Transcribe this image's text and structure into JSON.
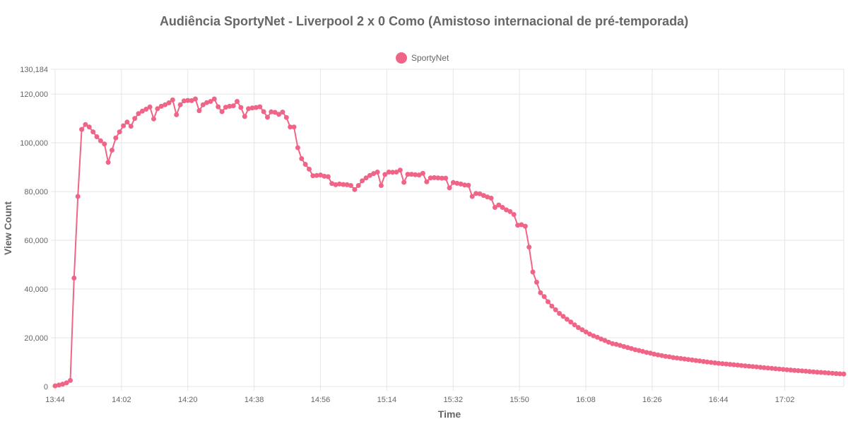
{
  "chart_data": {
    "type": "line",
    "title": "Audiência SportyNet - Liverpool 2 x 0 Como (Amistoso internacional de pré-temporada)",
    "xlabel": "Time",
    "ylabel": "View Count",
    "legend": {
      "placement": "top-center",
      "entries": [
        "SportyNet"
      ]
    },
    "grid": true,
    "color": "#f06587",
    "x_ticks": [
      "13:44",
      "14:02",
      "14:20",
      "14:38",
      "14:56",
      "15:14",
      "15:32",
      "15:50",
      "16:08",
      "16:26",
      "16:44",
      "17:02"
    ],
    "y_ticks": [
      "0",
      "20,000",
      "40,000",
      "60,000",
      "80,000",
      "100,000",
      "120,000",
      "130,184"
    ],
    "ylim": [
      0,
      130184
    ],
    "x_start": "13:44",
    "x_end": "17:18",
    "series": [
      {
        "name": "SportyNet",
        "values": [
          300,
          600,
          1000,
          1500,
          2500,
          44500,
          78000,
          105500,
          107500,
          106500,
          104500,
          102500,
          100800,
          99500,
          92000,
          97000,
          102000,
          104500,
          107000,
          108500,
          106800,
          110000,
          112000,
          113000,
          113800,
          114700,
          109800,
          114000,
          115000,
          115600,
          116400,
          117600,
          111500,
          115600,
          117200,
          117400,
          117300,
          118000,
          113200,
          115600,
          116500,
          117000,
          118000,
          114800,
          112800,
          114600,
          115000,
          115200,
          117000,
          114500,
          110800,
          114000,
          114300,
          114500,
          114800,
          112800,
          110500,
          112700,
          112500,
          111700,
          112600,
          110400,
          106500,
          106500,
          98000,
          93500,
          91200,
          89200,
          86500,
          86600,
          86800,
          86300,
          86100,
          83300,
          82800,
          83100,
          82900,
          82800,
          82500,
          80800,
          82500,
          84400,
          85600,
          86600,
          87400,
          88000,
          82500,
          87000,
          88000,
          87900,
          88000,
          88800,
          83800,
          87100,
          87100,
          86900,
          86800,
          87500,
          84000,
          85600,
          85700,
          85600,
          85500,
          85500,
          81500,
          83700,
          83400,
          83100,
          82700,
          82600,
          78000,
          79200,
          79100,
          78400,
          77800,
          77300,
          73500,
          74500,
          73500,
          72500,
          71800,
          70600,
          66200,
          66400,
          65800,
          57200,
          47000,
          42800,
          38500,
          36900,
          34800,
          33000,
          31500,
          30000,
          28800,
          27600,
          26500,
          25300,
          24200,
          23300,
          22400,
          21500,
          20800,
          20200,
          19500,
          18900,
          18200,
          17600,
          17300,
          16900,
          16400,
          16000,
          15600,
          15100,
          14800,
          14400,
          14000,
          13700,
          13300,
          13000,
          12700,
          12400,
          12200,
          11900,
          11700,
          11500,
          11300,
          11100,
          10900,
          10700,
          10500,
          10300,
          10100,
          9900,
          9700,
          9550,
          9400,
          9250,
          9100,
          8950,
          8800,
          8650,
          8500,
          8350,
          8200,
          8050,
          7900,
          7750,
          7600,
          7450,
          7300,
          7180,
          7050,
          6900,
          6780,
          6650,
          6520,
          6400,
          6280,
          6160,
          6040,
          5920,
          5800,
          5680,
          5560,
          5450,
          5340,
          5230,
          5130
        ]
      }
    ]
  }
}
